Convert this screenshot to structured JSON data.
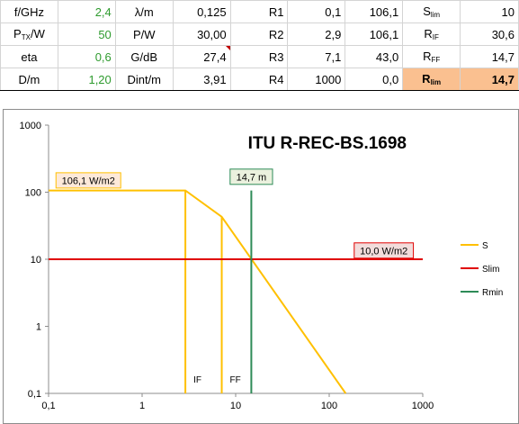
{
  "params": {
    "rows": [
      [
        {
          "label": "f/GHz",
          "sub": ""
        },
        {
          "value": "2,4",
          "style": "grn"
        },
        {
          "label": "λ/m",
          "sub": ""
        },
        {
          "value": "0,125"
        },
        {
          "label": "R1",
          "sub": ""
        },
        {
          "value": "0,1"
        },
        {
          "value": "106,1"
        },
        {
          "label": "S",
          "sub": "lim"
        },
        {
          "value": "10"
        }
      ],
      [
        {
          "label": "P",
          "sub": "TX",
          "after": "/W"
        },
        {
          "value": "50",
          "style": "grn"
        },
        {
          "label": "P/W",
          "sub": ""
        },
        {
          "value": "30,00"
        },
        {
          "label": "R2",
          "sub": ""
        },
        {
          "value": "2,9"
        },
        {
          "value": "106,1"
        },
        {
          "label": "R",
          "sub": "IF"
        },
        {
          "value": "30,6"
        }
      ],
      [
        {
          "label": "eta",
          "sub": ""
        },
        {
          "value": "0,6",
          "style": "grn"
        },
        {
          "label": "G/dB",
          "sub": ""
        },
        {
          "value": "27,4",
          "flag": true
        },
        {
          "label": "R3",
          "sub": ""
        },
        {
          "value": "7,1"
        },
        {
          "value": "43,0"
        },
        {
          "label": "R",
          "sub": "FF"
        },
        {
          "value": "14,7"
        }
      ],
      [
        {
          "label": "D/m",
          "sub": ""
        },
        {
          "value": "1,20",
          "style": "grn"
        },
        {
          "label": "Dint/m",
          "sub": ""
        },
        {
          "value": "3,91"
        },
        {
          "label": "R4",
          "sub": ""
        },
        {
          "value": "1000"
        },
        {
          "value": "0,0"
        },
        {
          "label": "R",
          "sub": "lim",
          "hl": true
        },
        {
          "value": "14,7",
          "hl": true
        }
      ]
    ]
  },
  "chart_data": {
    "type": "line",
    "title": "ITU R-REC-BS.1698",
    "xscale": "log",
    "yscale": "log",
    "xlim": [
      0.1,
      1000
    ],
    "ylim": [
      0.1,
      1000
    ],
    "xticks": [
      "0,1",
      "1",
      "10",
      "100",
      "1000"
    ],
    "yticks": [
      "0,1",
      "1",
      "10",
      "100",
      "1000"
    ],
    "xtick_values": [
      0.1,
      1,
      10,
      100,
      1000
    ],
    "ytick_values": [
      0.1,
      1,
      10,
      100,
      1000
    ],
    "series": [
      {
        "name": "S",
        "color": "#ffc000",
        "points": [
          [
            0.1,
            106.1
          ],
          [
            2.9,
            106.1
          ],
          [
            7.1,
            43.0
          ],
          [
            150,
            0.1
          ]
        ]
      },
      {
        "name": "Slim",
        "color": "#e00000",
        "points": [
          [
            0.1,
            10
          ],
          [
            1000,
            10
          ]
        ]
      },
      {
        "name": "Rmin",
        "color": "#2e8b57",
        "points": [
          [
            14.7,
            0.1
          ],
          [
            14.7,
            106.1
          ]
        ]
      }
    ],
    "verticals": [
      {
        "x": 2.9,
        "y": 106.1,
        "color": "#ffc000",
        "label": "IF"
      },
      {
        "x": 7.1,
        "y": 43.0,
        "color": "#ffc000",
        "label": "FF"
      }
    ],
    "annotations": [
      {
        "text": "106,1 W/m2",
        "x": 0.12,
        "y": 150,
        "fill": "#fde9d9",
        "stroke": "#ffc000"
      },
      {
        "text": "14,7 m",
        "x": 14.7,
        "y": 170,
        "fill": "#ebf1de",
        "stroke": "#2e8b57"
      },
      {
        "text": "10,0 W/m2",
        "x": 185,
        "y": 13.5,
        "fill": "#f2dcdb",
        "stroke": "#e00000"
      }
    ],
    "legend": {
      "position": "right",
      "entries": [
        "S",
        "Slim",
        "Rmin"
      ]
    },
    "grid": false
  }
}
